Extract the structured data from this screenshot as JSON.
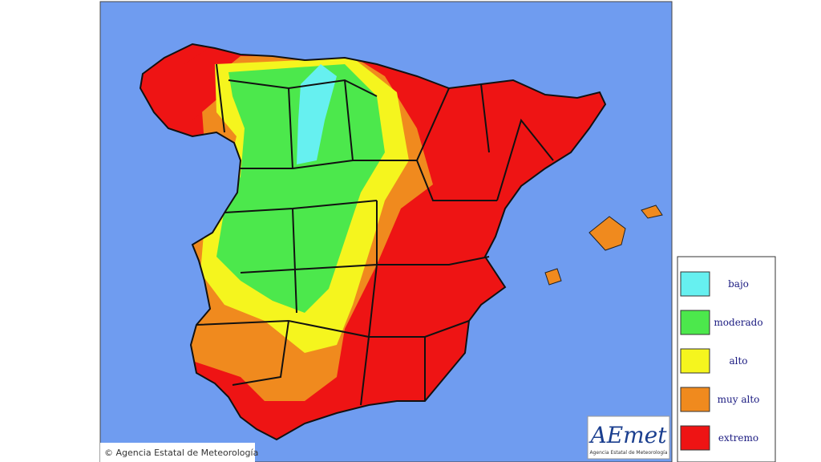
{
  "legend": {
    "items": [
      {
        "label": "bajo",
        "color": "#66f0f0"
      },
      {
        "label": "moderado",
        "color": "#4ce84c"
      },
      {
        "label": "alto",
        "color": "#f5f51e"
      },
      {
        "label": "muy alto",
        "color": "#f08a1e"
      },
      {
        "label": "extremo",
        "color": "#ee1414"
      }
    ]
  },
  "credit": "© Agencia Estatal de Meteorología",
  "logo": {
    "title": "AEmet",
    "subtitle": "Agencia Estatal de Meteorología"
  }
}
